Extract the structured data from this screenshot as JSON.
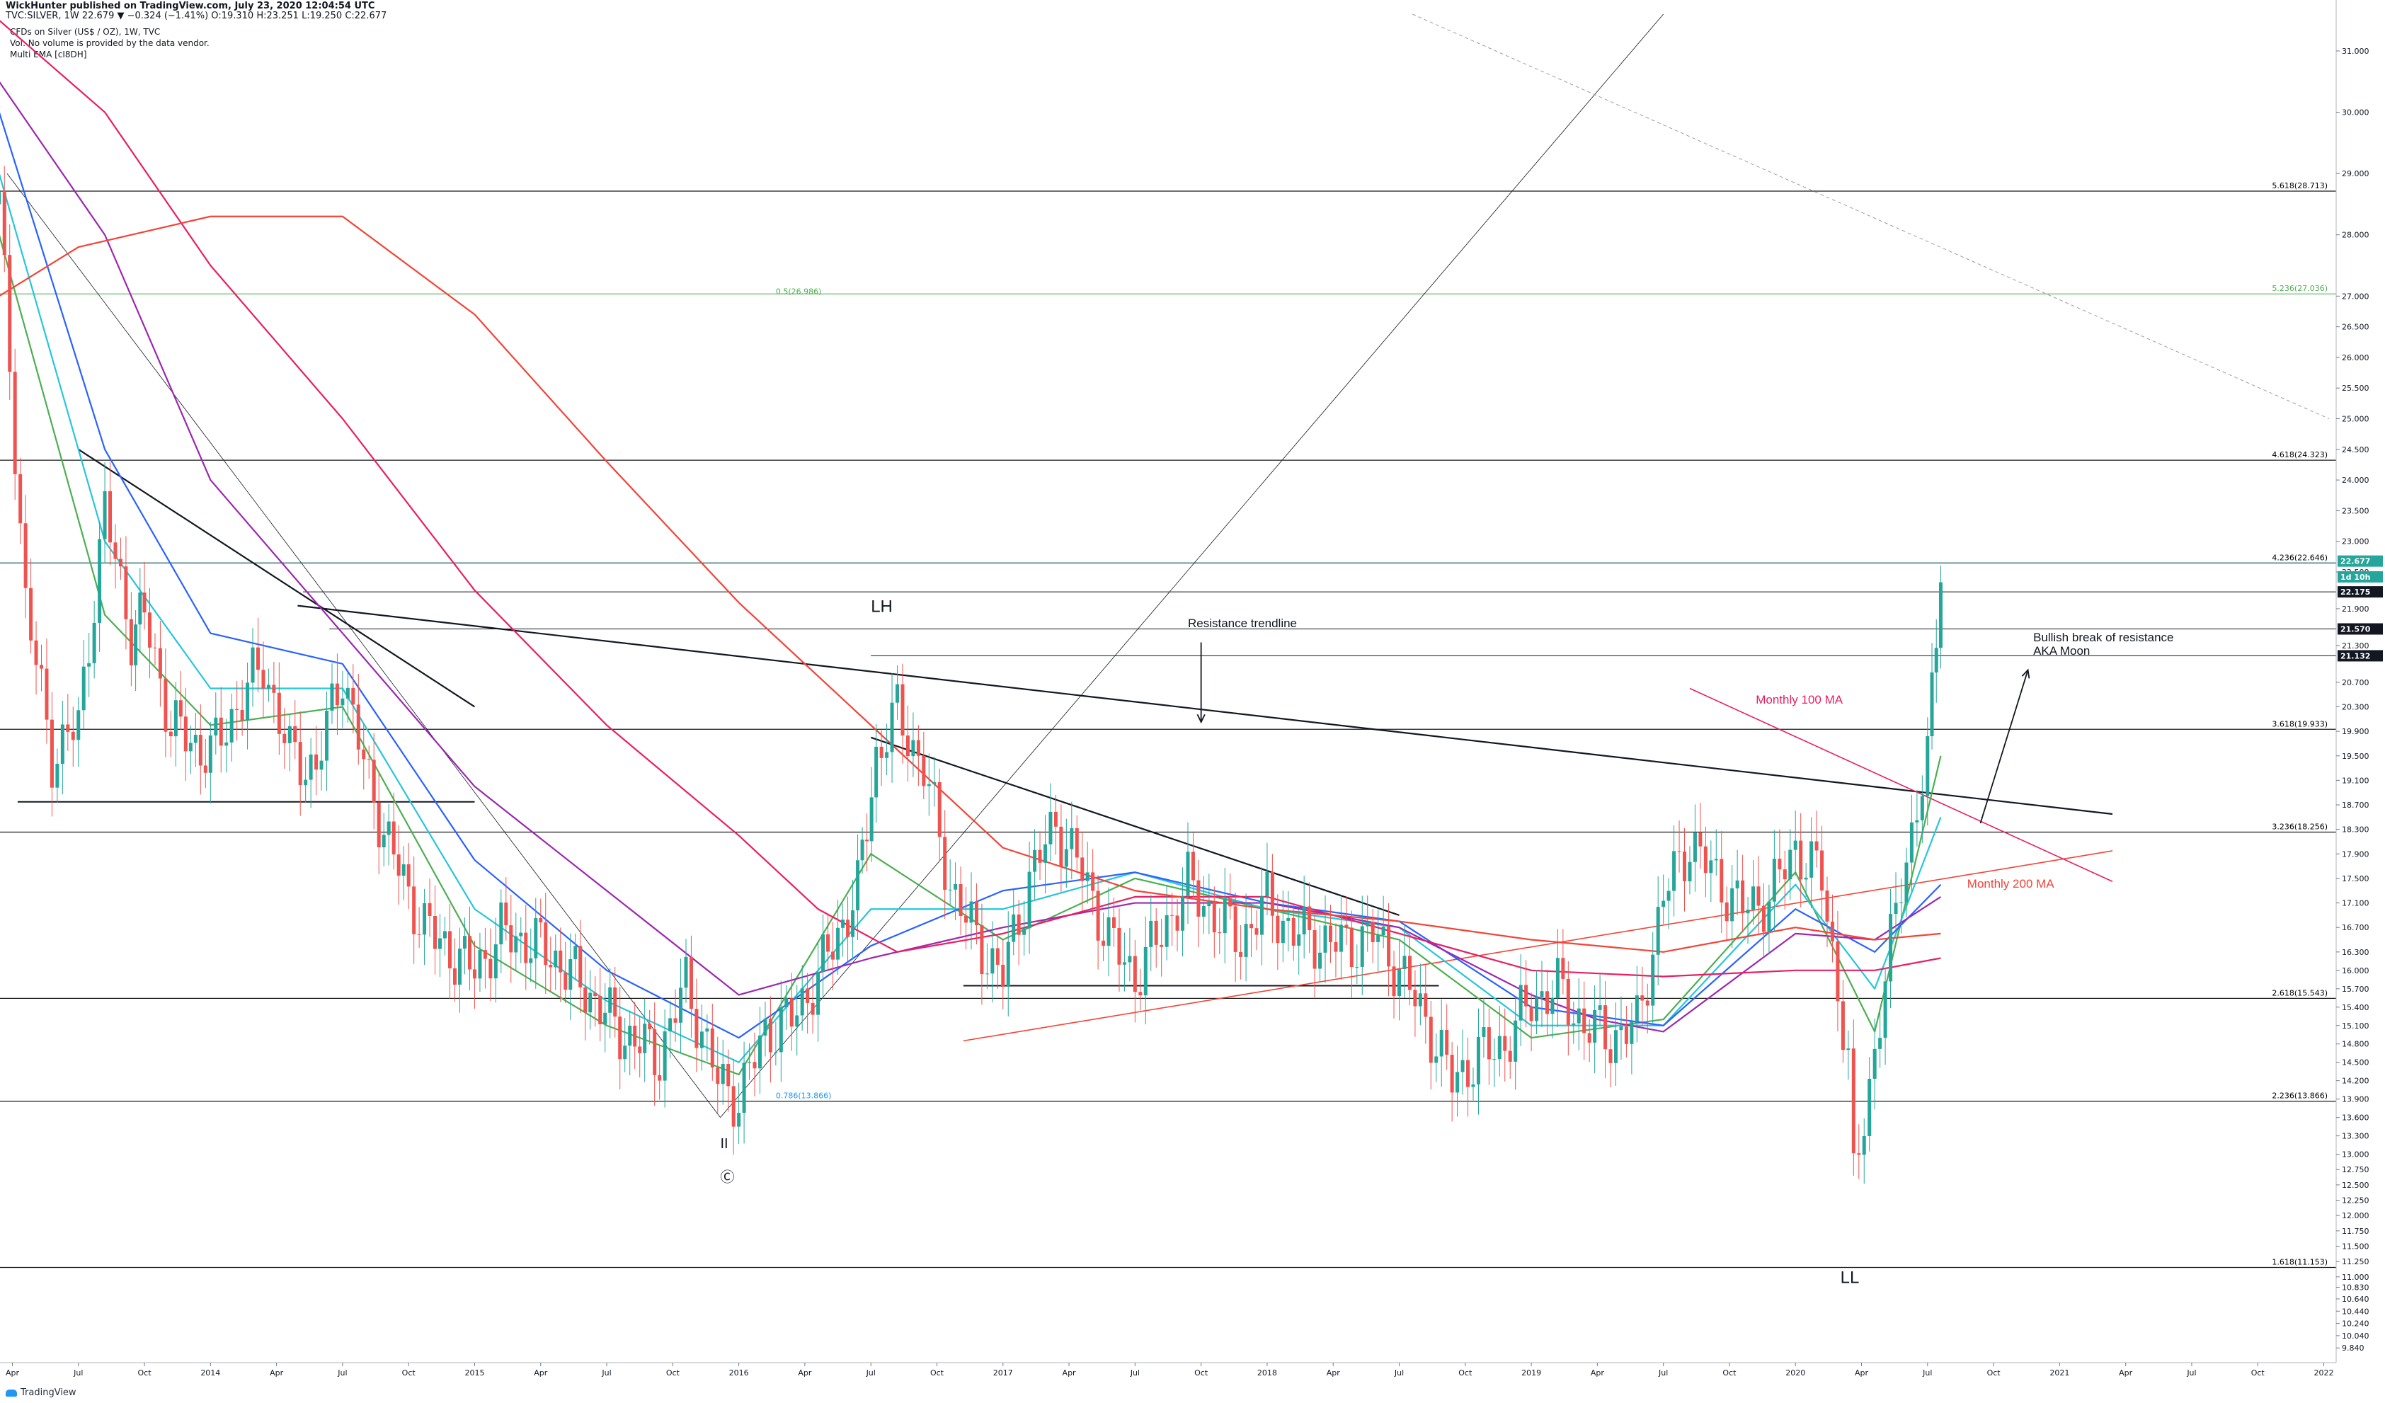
{
  "header": {
    "publisher_line": "WickHunter published on TradingView.com, July 23, 2020 12:04:54 UTC",
    "symbol_line": "TVC:SILVER, 1W  22.679 ▼ −0.324 (−1.41%)  O:19.310  H:23.251  L:19.250  C:22.677"
  },
  "legend": {
    "title": "CFDs on Silver (US$ / OZ), 1W, TVC",
    "volume_note": "Vol: No volume is provided by the data vendor.",
    "indicator": "Multi EMA [cI8DH]"
  },
  "footer": {
    "logo_text": "TradingView"
  },
  "colors": {
    "bull": "#26a69a",
    "bear": "#ef5350",
    "ema_fast": "#4caf50",
    "ema_mid": "#26c6da",
    "ema_slow": "#2962ff",
    "purple": "#9c27b0",
    "magenta": "#e91e63",
    "red": "#f44336",
    "fib_green": "#4caf50",
    "fib_blue": "#2196f3"
  },
  "chart_data": {
    "type": "candlestick",
    "title": "CFDs on Silver (US$ / OZ), 1W, TVC",
    "symbol": "TVC:SILVER",
    "timeframe": "1W",
    "ylim": [
      9.6,
      31.6
    ],
    "y_ticks": [
      31.0,
      30.0,
      29.0,
      28.0,
      27.0,
      26.5,
      26.0,
      25.5,
      25.0,
      24.5,
      24.0,
      23.5,
      23.0,
      22.5,
      21.9,
      21.3,
      20.7,
      20.3,
      19.9,
      19.5,
      19.1,
      18.7,
      18.3,
      17.9,
      17.5,
      17.1,
      16.7,
      16.3,
      16.0,
      15.7,
      15.4,
      15.1,
      14.8,
      14.5,
      14.2,
      13.9,
      13.6,
      13.3,
      13.0,
      12.75,
      12.5,
      12.25,
      12.0,
      11.75,
      11.5,
      11.25,
      11.0,
      10.83,
      10.64,
      10.44,
      10.24,
      10.04,
      9.84
    ],
    "x_ticks": [
      "Apr",
      "Jul",
      "Oct",
      "2014",
      "Apr",
      "Jul",
      "Oct",
      "2015",
      "Apr",
      "Jul",
      "Oct",
      "2016",
      "Apr",
      "Jul",
      "Oct",
      "2017",
      "Apr",
      "Jul",
      "Oct",
      "2018",
      "Apr",
      "Jul",
      "Oct",
      "2019",
      "Apr",
      "Jul",
      "Oct",
      "2020",
      "Apr",
      "Jul",
      "Oct",
      "2021",
      "Apr",
      "Jul",
      "Oct",
      "2022"
    ],
    "x_tick_dates": [
      2013.25,
      2013.5,
      2013.75,
      2014.0,
      2014.25,
      2014.5,
      2014.75,
      2015.0,
      2015.25,
      2015.5,
      2015.75,
      2016.0,
      2016.25,
      2016.5,
      2016.75,
      2017.0,
      2017.25,
      2017.5,
      2017.75,
      2018.0,
      2018.25,
      2018.5,
      2018.75,
      2019.0,
      2019.25,
      2019.5,
      2019.75,
      2020.0,
      2020.25,
      2020.5,
      2020.75,
      2021.0,
      2021.25,
      2021.5,
      2021.75,
      2022.0
    ],
    "price_series": {
      "name": "TVC:SILVER",
      "x": [
        2013.2,
        2013.3,
        2013.4,
        2013.5,
        2013.6,
        2013.7,
        2013.75,
        2013.85,
        2014.0,
        2014.1,
        2014.2,
        2014.3,
        2014.4,
        2014.5,
        2014.6,
        2014.75,
        2014.85,
        2015.0,
        2015.1,
        2015.25,
        2015.4,
        2015.55,
        2015.7,
        2015.8,
        2015.92,
        2016.0,
        2016.1,
        2016.2,
        2016.3,
        2016.45,
        2016.52,
        2016.6,
        2016.7,
        2016.8,
        2016.9,
        2017.0,
        2017.1,
        2017.2,
        2017.3,
        2017.4,
        2017.5,
        2017.6,
        2017.7,
        2017.8,
        2017.9,
        2018.0,
        2018.1,
        2018.2,
        2018.3,
        2018.4,
        2018.5,
        2018.6,
        2018.7,
        2018.8,
        2018.9,
        2019.0,
        2019.1,
        2019.2,
        2019.3,
        2019.4,
        2019.5,
        2019.6,
        2019.7,
        2019.8,
        2019.9,
        2020.0,
        2020.1,
        2020.2,
        2020.22,
        2020.3,
        2020.4,
        2020.5,
        2020.55
      ],
      "close": [
        28.5,
        22.0,
        19.5,
        20.0,
        23.5,
        21.5,
        21.8,
        20.0,
        19.5,
        20.3,
        21.0,
        19.5,
        19.3,
        20.9,
        19.0,
        17.2,
        16.5,
        16.0,
        16.6,
        16.4,
        15.8,
        15.0,
        14.6,
        15.8,
        14.2,
        13.9,
        15.0,
        15.2,
        15.9,
        17.3,
        19.5,
        20.2,
        19.3,
        17.4,
        16.5,
        15.9,
        17.5,
        18.4,
        17.6,
        16.5,
        15.9,
        16.6,
        17.4,
        16.9,
        16.5,
        17.1,
        16.6,
        16.5,
        16.4,
        16.6,
        16.0,
        15.2,
        14.2,
        14.6,
        14.8,
        15.5,
        15.7,
        15.1,
        14.9,
        15.1,
        17.2,
        18.1,
        17.5,
        17.0,
        17.2,
        18.0,
        17.5,
        14.5,
        12.5,
        14.7,
        17.5,
        19.4,
        22.68
      ]
    },
    "moving_averages": [
      {
        "name": "EMA fast",
        "color": "#4caf50",
        "x": [
          2013.2,
          2013.6,
          2014.0,
          2014.5,
          2015.0,
          2015.5,
          2016.0,
          2016.5,
          2017.0,
          2017.5,
          2018.0,
          2018.5,
          2019.0,
          2019.5,
          2020.0,
          2020.3,
          2020.55
        ],
        "y": [
          28.0,
          21.8,
          20.0,
          20.3,
          16.4,
          15.1,
          14.3,
          17.9,
          16.5,
          17.5,
          17.0,
          16.5,
          14.9,
          15.2,
          17.6,
          15.0,
          19.5
        ]
      },
      {
        "name": "EMA mid",
        "color": "#26c6da",
        "x": [
          2013.2,
          2013.6,
          2014.0,
          2014.5,
          2015.0,
          2015.5,
          2016.0,
          2016.5,
          2017.0,
          2017.5,
          2018.0,
          2018.5,
          2019.0,
          2019.5,
          2020.0,
          2020.3,
          2020.55
        ],
        "y": [
          29.0,
          23.0,
          20.6,
          20.6,
          17.0,
          15.5,
          14.5,
          17.0,
          17.0,
          17.6,
          17.0,
          16.7,
          15.1,
          15.1,
          17.4,
          15.7,
          18.5
        ]
      },
      {
        "name": "EMA slow",
        "color": "#2962ff",
        "x": [
          2013.2,
          2013.6,
          2014.0,
          2014.5,
          2015.0,
          2015.5,
          2016.0,
          2016.5,
          2017.0,
          2017.5,
          2018.0,
          2018.5,
          2019.0,
          2019.5,
          2020.0,
          2020.3,
          2020.55
        ],
        "y": [
          30.0,
          24.5,
          21.5,
          21.0,
          17.8,
          16.0,
          14.9,
          16.4,
          17.3,
          17.6,
          17.1,
          16.8,
          15.4,
          15.1,
          17.0,
          16.3,
          17.4
        ]
      },
      {
        "name": "Purple MA",
        "color": "#9c27b0",
        "x": [
          2013.2,
          2013.6,
          2014.0,
          2014.5,
          2015.0,
          2015.5,
          2016.0,
          2016.5,
          2017.0,
          2017.5,
          2018.0,
          2018.5,
          2019.0,
          2019.25,
          2019.5,
          2020.0,
          2020.3,
          2020.55
        ],
        "y": [
          30.5,
          28.0,
          24.0,
          21.5,
          19.0,
          17.3,
          15.6,
          16.2,
          16.7,
          17.1,
          17.1,
          16.7,
          15.6,
          15.2,
          15.0,
          16.6,
          16.5,
          17.2
        ]
      },
      {
        "name": "Magenta MA",
        "color": "#e91e63",
        "x": [
          2013.2,
          2013.6,
          2014.0,
          2014.5,
          2015.0,
          2015.5,
          2016.0,
          2016.3,
          2016.6,
          2017.0,
          2017.5,
          2018.0,
          2018.5,
          2019.0,
          2019.5,
          2020.0,
          2020.3,
          2020.55
        ],
        "y": [
          31.5,
          30.0,
          27.5,
          25.0,
          22.2,
          20.0,
          18.2,
          17.0,
          16.3,
          16.6,
          17.2,
          17.2,
          16.6,
          16.0,
          15.9,
          16.0,
          16.0,
          16.2
        ]
      },
      {
        "name": "Red MA",
        "color": "#f44336",
        "x": [
          2013.2,
          2013.5,
          2014.0,
          2014.5,
          2015.0,
          2015.5,
          2016.0,
          2016.5,
          2017.0,
          2017.5,
          2018.0,
          2018.5,
          2019.0,
          2019.5,
          2020.0,
          2020.3,
          2020.55
        ],
        "y": [
          27.0,
          27.8,
          28.3,
          28.3,
          26.7,
          24.3,
          22.0,
          20.0,
          18.0,
          17.3,
          17.0,
          16.8,
          16.5,
          16.3,
          16.7,
          16.5,
          16.6
        ]
      }
    ],
    "fib_levels": [
      {
        "label": "5.618(28.713)",
        "value": 28.713,
        "color": "#000000"
      },
      {
        "label": "5.236(27.036)",
        "value": 27.036,
        "color": "#4caf50"
      },
      {
        "label": "0.5(26.986)",
        "value": 26.986,
        "color": "#4caf50"
      },
      {
        "label": "4.618(24.323)",
        "value": 24.323,
        "color": "#000000"
      },
      {
        "label": "4.236(22.646)",
        "value": 22.646,
        "color": "#000000"
      },
      {
        "label": "3.618(19.933)",
        "value": 19.933,
        "color": "#000000"
      },
      {
        "label": "3.236(18.256)",
        "value": 18.256,
        "color": "#000000"
      },
      {
        "label": "2.618(15.543)",
        "value": 15.543,
        "color": "#000000"
      },
      {
        "label": "2.236(13.866)",
        "value": 13.866,
        "color": "#000000"
      },
      {
        "label": "0.786(13.866)",
        "value": 13.866,
        "color": "#2196f3"
      },
      {
        "label": "1.618(11.153)",
        "value": 11.153,
        "color": "#000000"
      }
    ],
    "price_labels": [
      {
        "text": "22.677",
        "value": 22.677,
        "bg": "#26a69a"
      },
      {
        "text": "1d 10h",
        "value": 22.42,
        "bg": "#26a69a"
      },
      {
        "text": "22.175",
        "value": 22.175,
        "bg": "#131722"
      },
      {
        "text": "21.570",
        "value": 21.57,
        "bg": "#131722"
      },
      {
        "text": "21.132",
        "value": 21.132,
        "bg": "#131722"
      }
    ],
    "annotations": [
      {
        "text": "LH",
        "x": 2016.5,
        "y": 21.85,
        "color": "#131722"
      },
      {
        "text": "Resistance trendline",
        "x": 2017.7,
        "y": 21.6,
        "color": "#131722"
      },
      {
        "text": "Bullish break of resistance",
        "x": 2020.9,
        "y": 21.37,
        "color": "#131722"
      },
      {
        "text": "AKA Moon",
        "x": 2020.9,
        "y": 21.15,
        "color": "#131722"
      },
      {
        "text": "Monthly 100 MA",
        "x": 2019.85,
        "y": 20.35,
        "color": "#e91e63"
      },
      {
        "text": "Monthly 200 MA",
        "x": 2020.65,
        "y": 17.35,
        "color": "#f44336"
      },
      {
        "text": "II",
        "x": 2015.93,
        "y": 13.1,
        "color": "#131722"
      },
      {
        "text": "Ⓒ",
        "x": 2015.93,
        "y": 12.55,
        "color": "#131722"
      },
      {
        "text": "LL",
        "x": 2020.17,
        "y": 10.9,
        "color": "#131722"
      }
    ]
  }
}
